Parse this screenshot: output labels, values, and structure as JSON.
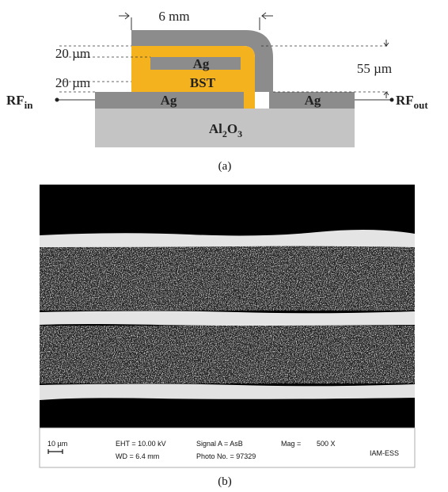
{
  "diagram_a": {
    "width_label": "6 mm",
    "thickness_label_top": "20 µm",
    "thickness_label_bottom": "20 µm",
    "height_label": "55 µm",
    "top_electrode": "Ag",
    "dielectric": "BST",
    "bottom_left_electrode": "Ag",
    "bottom_right_electrode": "Ag",
    "substrate": {
      "parts": [
        "Al",
        "2",
        "O",
        "3"
      ]
    },
    "rf_in": {
      "text": "RF",
      "subscript": "in"
    },
    "rf_out": {
      "text": "RF",
      "subscript": "out"
    },
    "caption": "(a)"
  },
  "image_b": {
    "scale_bar": "10 µm",
    "eht": "EHT = 10.00 kV",
    "wd": "WD = 6.4 mm",
    "signal": "Signal A = AsB",
    "photo": "Photo No. = 97329",
    "mag_label": "Mag =",
    "mag_value": "500 X",
    "institute": "IAM-ESS",
    "caption": "(b)"
  }
}
